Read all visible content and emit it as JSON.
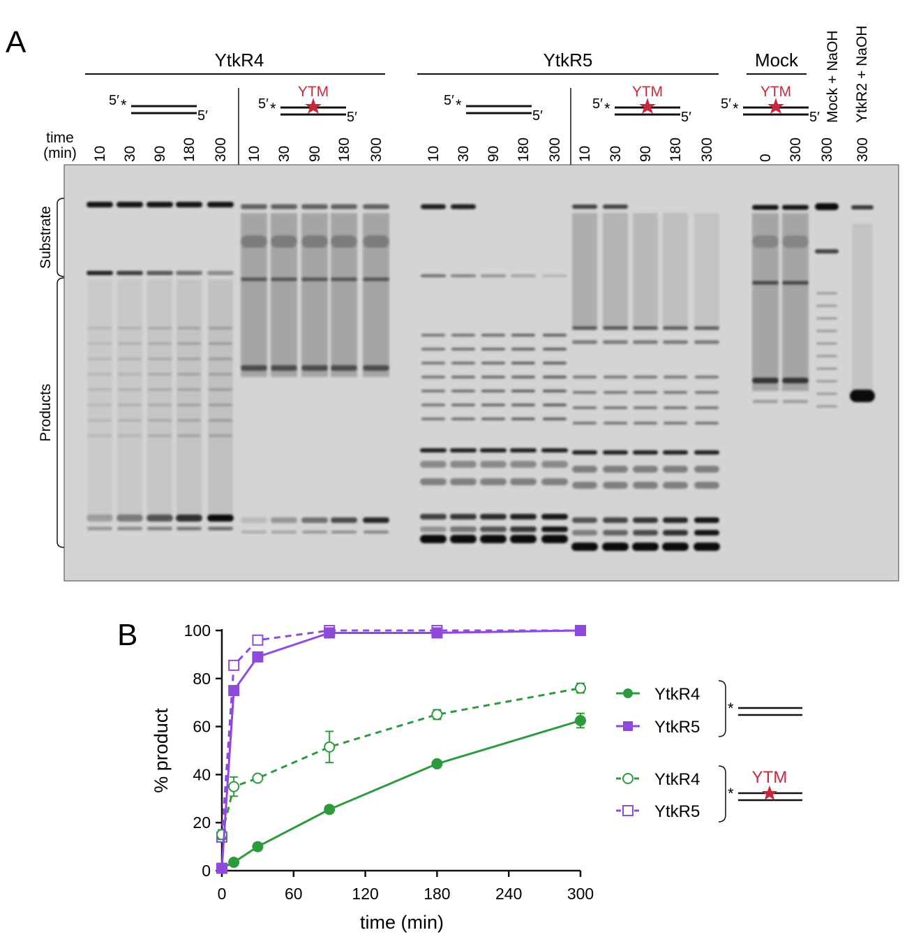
{
  "panels": {
    "a": "A",
    "b": "B"
  },
  "gel": {
    "groups": [
      "YtkR4",
      "YtkR5",
      "Mock"
    ],
    "prime5": "5′",
    "star": "*",
    "ytm": "YTM",
    "time_label_1": "time",
    "time_label_2": "(min)",
    "lanes": [
      {
        "t": "10"
      },
      {
        "t": "30"
      },
      {
        "t": "90"
      },
      {
        "t": "180"
      },
      {
        "t": "300"
      },
      {
        "t": "10"
      },
      {
        "t": "30"
      },
      {
        "t": "90"
      },
      {
        "t": "180"
      },
      {
        "t": "300"
      },
      {
        "t": "10"
      },
      {
        "t": "30"
      },
      {
        "t": "90"
      },
      {
        "t": "180"
      },
      {
        "t": "300"
      },
      {
        "t": "10"
      },
      {
        "t": "30"
      },
      {
        "t": "90"
      },
      {
        "t": "180"
      },
      {
        "t": "300"
      },
      {
        "t": "0"
      },
      {
        "t": "300"
      },
      {
        "t": "300"
      },
      {
        "t": "300"
      }
    ],
    "control_labels": [
      "Mock + NaOH",
      "YtkR2 + NaOH"
    ],
    "side_labels": {
      "substrate": "Substrate",
      "products": "Products"
    },
    "colors": {
      "ytm": "#c8283c",
      "gel_bg": "#d4d4d4"
    }
  },
  "chart_data": {
    "type": "line",
    "xlabel": "time (min)",
    "ylabel": "% product",
    "xlim": [
      0,
      300
    ],
    "ylim": [
      0,
      100
    ],
    "xticks": [
      0,
      60,
      120,
      180,
      240,
      300
    ],
    "yticks": [
      0,
      20,
      40,
      60,
      80,
      100
    ],
    "grid": false,
    "legend_position": "right",
    "x": [
      0,
      10,
      30,
      90,
      180,
      300
    ],
    "series": [
      {
        "name": "YtkR4",
        "substrate": "dsDNA",
        "marker": "circle-filled",
        "dash": "solid",
        "color": "#2e9a3e",
        "values": [
          1,
          3.5,
          10,
          25.5,
          44.5,
          62.5
        ],
        "err": [
          0,
          0,
          1.5,
          1.5,
          0,
          3
        ]
      },
      {
        "name": "YtkR5",
        "substrate": "dsDNA",
        "marker": "square-filled",
        "dash": "solid",
        "color": "#8e4bdb",
        "values": [
          1,
          75,
          89,
          99,
          99,
          100
        ],
        "err": [
          0,
          0,
          0,
          0,
          0,
          0
        ]
      },
      {
        "name": "YtkR4",
        "substrate": "YTM-dsDNA",
        "marker": "circle-open",
        "dash": "dashed",
        "color": "#2e9a3e",
        "values": [
          15,
          35,
          38.5,
          51.5,
          65,
          76
        ],
        "err": [
          2,
          4,
          0,
          6.5,
          2,
          2
        ]
      },
      {
        "name": "YtkR5",
        "substrate": "YTM-dsDNA",
        "marker": "square-open",
        "dash": "dashed",
        "color": "#8e4bdb",
        "values": [
          14,
          85.5,
          96,
          100,
          100,
          100
        ],
        "err": [
          2,
          0,
          0,
          0,
          0,
          0
        ]
      }
    ],
    "legend_groups": [
      {
        "annotation": ""
      },
      {
        "annotation": "YTM"
      }
    ]
  }
}
